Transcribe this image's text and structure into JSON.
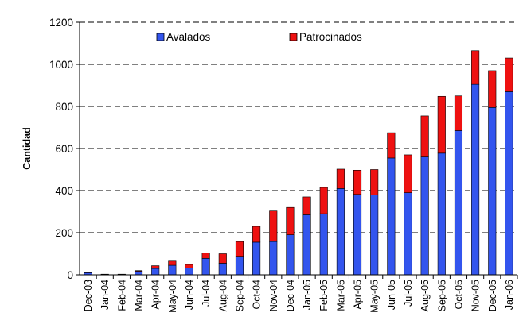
{
  "chart_data": {
    "type": "bar",
    "stacked": true,
    "title": "",
    "xlabel": "",
    "ylabel": "Cantidad",
    "ylim": [
      0,
      1200
    ],
    "yticks": [
      0,
      200,
      400,
      600,
      800,
      1000,
      1200
    ],
    "grid": "horizontal dashed",
    "legend_position": "top-left",
    "categories": [
      "Dec-03",
      "Jan-04",
      "Feb-04",
      "Mar-04",
      "Apr-04",
      "May-04",
      "Jun-04",
      "Jul-04",
      "Aug-04",
      "Sep-04",
      "Oct-04",
      "Nov-04",
      "Dec-04",
      "Jan-05",
      "Feb-05",
      "Mar-05",
      "Apr-05",
      "May-05",
      "Jun-05",
      "Jul-05",
      "Aug-05",
      "Sep-05",
      "Oct-05",
      "Nov-05",
      "Dec-05",
      "Jan-06"
    ],
    "series": [
      {
        "name": "Avalados",
        "color": "#3355ee",
        "values": [
          10,
          3,
          3,
          17,
          30,
          45,
          32,
          78,
          55,
          88,
          155,
          158,
          190,
          285,
          290,
          410,
          382,
          380,
          555,
          390,
          560,
          578,
          685,
          905,
          795,
          870
        ]
      },
      {
        "name": "Patrocinados",
        "color": "#ee1111",
        "values": [
          3,
          0,
          0,
          3,
          13,
          20,
          17,
          25,
          45,
          70,
          75,
          145,
          130,
          85,
          125,
          92,
          115,
          120,
          120,
          180,
          195,
          270,
          165,
          160,
          175,
          160
        ]
      }
    ]
  }
}
